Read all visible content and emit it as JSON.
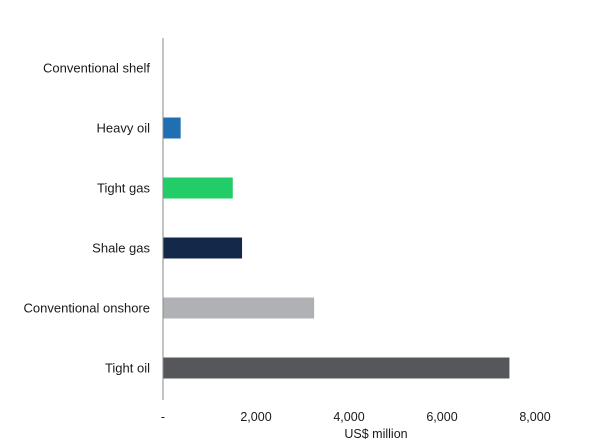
{
  "chart_data": {
    "type": "bar",
    "orientation": "horizontal",
    "categories": [
      "Conventional shelf",
      "Heavy oil",
      "Tight gas",
      "Shale gas",
      "Conventional onshore",
      "Tight oil"
    ],
    "values": [
      0,
      380,
      1500,
      1700,
      3250,
      7450
    ],
    "colors": [
      "#1f6fb2",
      "#1f6fb2",
      "#22cc66",
      "#14294a",
      "#b0b1b5",
      "#55575a"
    ],
    "xlabel": "US$ million",
    "xlim": [
      0,
      8000
    ],
    "xticks": [
      0,
      2000,
      4000,
      6000,
      8000
    ],
    "xtick_labels": [
      "-",
      "2,000",
      "4,000",
      "6,000",
      "8,000"
    ],
    "grid": false,
    "legend": "none"
  }
}
